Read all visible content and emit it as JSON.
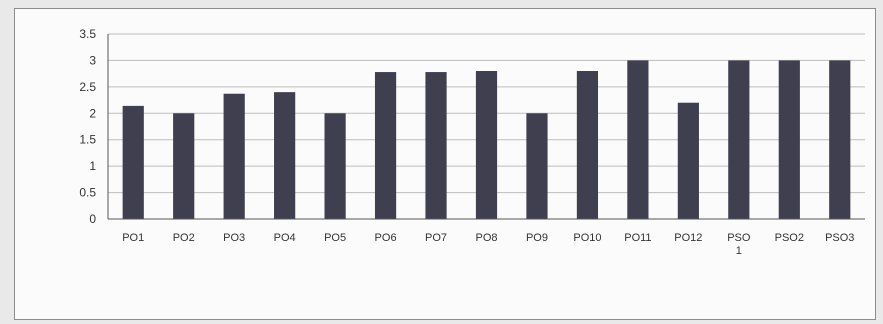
{
  "chart_data": {
    "type": "bar",
    "categories": [
      "PO1",
      "PO2",
      "PO3",
      "PO4",
      "PO5",
      "PO6",
      "PO7",
      "PO8",
      "PO9",
      "PO10",
      "PO11",
      "PO12",
      "PSO 1",
      "PSO2",
      "PSO3"
    ],
    "values": [
      2.14,
      2.0,
      2.37,
      2.4,
      2.0,
      2.78,
      2.78,
      2.8,
      2.0,
      2.8,
      3.0,
      2.2,
      3.0,
      3.0,
      3.0
    ],
    "yticks": [
      "0",
      "0.5",
      "1",
      "1.5",
      "2",
      "2.5",
      "3",
      "3.5"
    ],
    "ylim": [
      0,
      3.5
    ],
    "grid": true,
    "legend": "none",
    "title": "",
    "xlabel": "",
    "ylabel": "",
    "colors": {
      "bar": "#3f3f4f",
      "grid": "#bdbdbd",
      "axis": "#555555"
    }
  }
}
